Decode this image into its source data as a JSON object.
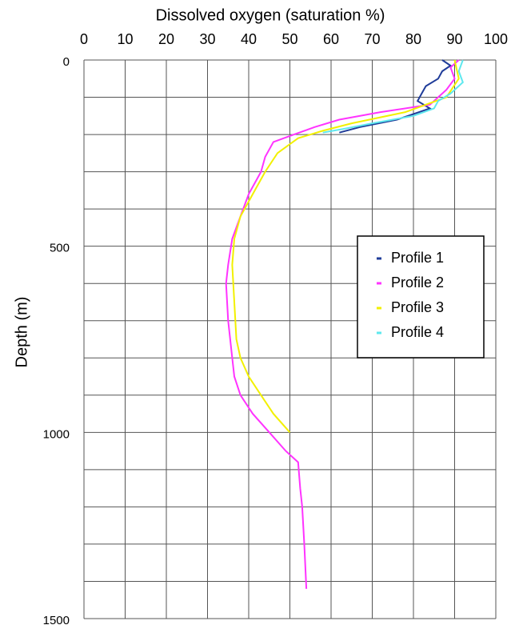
{
  "chart_data": {
    "type": "line",
    "title": "Dissolved oxygen (saturation %)",
    "y_label": "Depth (m)",
    "xlim": [
      0,
      100
    ],
    "xticks": [
      0,
      10,
      20,
      30,
      40,
      50,
      60,
      70,
      80,
      90,
      100
    ],
    "ylim": [
      0,
      1500
    ],
    "yticks": [
      0,
      500,
      1000,
      1500
    ],
    "ygrid": [
      0,
      100,
      200,
      300,
      400,
      500,
      600,
      700,
      800,
      900,
      1000,
      1100,
      1200,
      1300,
      1400,
      1500
    ],
    "y_inverted": true,
    "x_axis_position": "top",
    "grid": true,
    "legend": "right",
    "series": [
      {
        "name": "Profile 1",
        "color": "#1f3c99",
        "x": [
          87,
          89,
          87,
          86,
          83,
          82,
          81,
          84,
          76,
          67,
          62
        ],
        "y": [
          0,
          15,
          30,
          50,
          70,
          90,
          110,
          130,
          160,
          180,
          195
        ]
      },
      {
        "name": "Profile 2",
        "color": "#ff33ff",
        "x": [
          91,
          89,
          90,
          88,
          86,
          84,
          72,
          62,
          56,
          51,
          46,
          44,
          43,
          40,
          38,
          36,
          35,
          34.5,
          35,
          36,
          36.5,
          38,
          41,
          45,
          49,
          52,
          52.5,
          53,
          53.5,
          54
        ],
        "y": [
          0,
          20,
          50,
          80,
          100,
          120,
          140,
          160,
          180,
          200,
          220,
          260,
          300,
          360,
          420,
          480,
          550,
          600,
          700,
          800,
          850,
          900,
          950,
          1000,
          1050,
          1080,
          1150,
          1200,
          1300,
          1420
        ]
      },
      {
        "name": "Profile 3",
        "color": "#f2f000",
        "x": [
          90,
          91,
          88,
          78,
          65,
          58,
          52,
          47,
          44,
          41,
          38,
          36.5,
          36,
          36.5,
          37,
          38,
          40,
          43,
          46,
          50
        ],
        "y": [
          0,
          50,
          100,
          140,
          170,
          190,
          210,
          250,
          300,
          360,
          420,
          480,
          550,
          650,
          750,
          800,
          850,
          900,
          950,
          1000
        ]
      },
      {
        "name": "Profile 4",
        "color": "#5ee8ee",
        "x": [
          92,
          91,
          92,
          89,
          86,
          85,
          80,
          70,
          63,
          58
        ],
        "y": [
          0,
          30,
          60,
          90,
          110,
          130,
          150,
          170,
          185,
          195
        ]
      }
    ]
  }
}
